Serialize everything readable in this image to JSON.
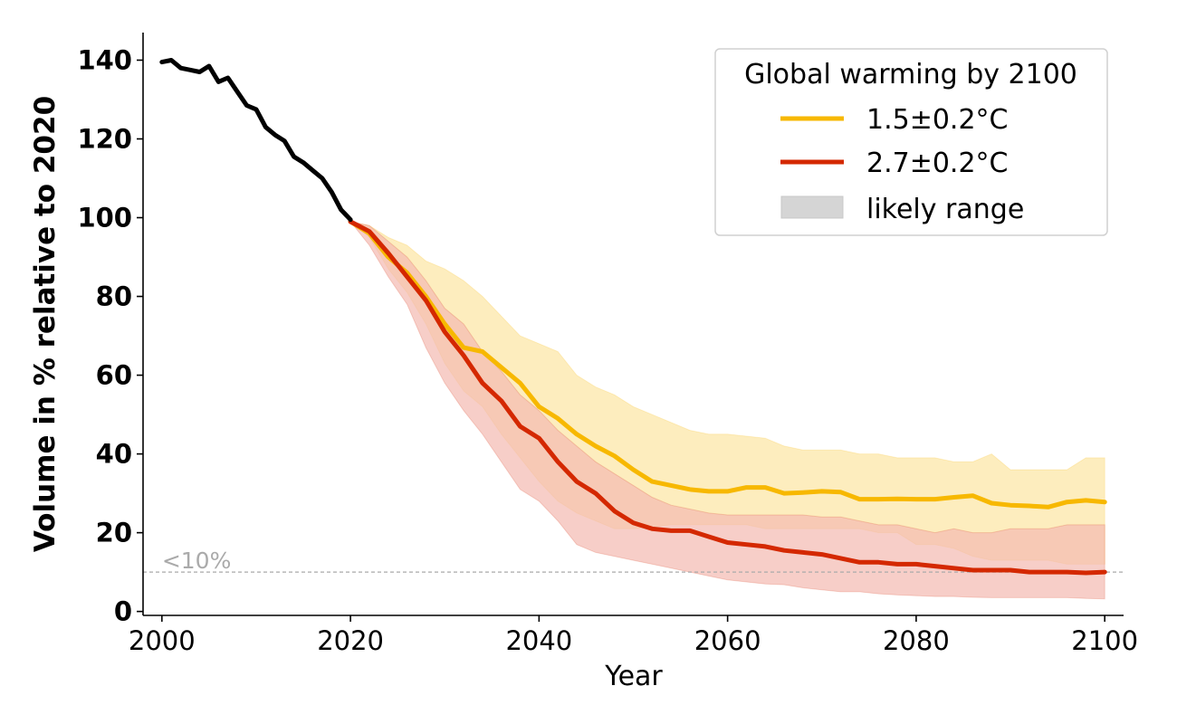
{
  "chart_data": {
    "type": "line",
    "title": "",
    "xlabel": "Year",
    "ylabel": "Volume in % relative to 2020",
    "xlim": [
      1998,
      2102
    ],
    "ylim": [
      -1,
      147
    ],
    "xticks": [
      2000,
      2020,
      2040,
      2060,
      2080,
      2100
    ],
    "xtick_labels": [
      "2000",
      "2020",
      "2040",
      "2060",
      "2080",
      "2100"
    ],
    "yticks": [
      0,
      20,
      40,
      60,
      80,
      100,
      120,
      140
    ],
    "ytick_labels": [
      "0",
      "20",
      "40",
      "60",
      "80",
      "100",
      "120",
      "140"
    ],
    "legend": {
      "title": "Global warming by 2100",
      "position": "top-right",
      "entries": [
        {
          "label": "1.5±0.2°C",
          "kind": "line",
          "color": "#f7b800"
        },
        {
          "label": "2.7±0.2°C",
          "kind": "line",
          "color": "#d42800"
        },
        {
          "label": "likely range",
          "kind": "patch",
          "color": "#d5d5d5"
        }
      ]
    },
    "threshold": {
      "label": "<10%",
      "value": 10,
      "color": "#aaaaaa"
    },
    "series": [
      {
        "name": "observed",
        "color": "#000000",
        "x": [
          2000,
          2001,
          2002,
          2003,
          2004,
          2005,
          2006,
          2007,
          2008,
          2009,
          2010,
          2011,
          2012,
          2013,
          2014,
          2015,
          2016,
          2017,
          2018,
          2019,
          2020
        ],
        "values": [
          139.5,
          140,
          138,
          137.5,
          137,
          138.5,
          134.5,
          135.5,
          132,
          128.5,
          127.5,
          123,
          121,
          119.5,
          115.5,
          114,
          112,
          110,
          106.5,
          102,
          99.5
        ]
      },
      {
        "name": "1.5±0.2°C",
        "color": "#f7b800",
        "band_color": "#fde9ae",
        "x": [
          2020,
          2022,
          2024,
          2026,
          2028,
          2030,
          2032,
          2034,
          2036,
          2038,
          2040,
          2042,
          2044,
          2046,
          2048,
          2050,
          2052,
          2054,
          2056,
          2058,
          2060,
          2062,
          2064,
          2066,
          2068,
          2070,
          2072,
          2074,
          2076,
          2078,
          2080,
          2082,
          2084,
          2086,
          2088,
          2090,
          2092,
          2094,
          2096,
          2098,
          2100
        ],
        "values": [
          99,
          96,
          90,
          86,
          80,
          73,
          67,
          66,
          62,
          58,
          52,
          49,
          45,
          42,
          39.5,
          36,
          33,
          32,
          31,
          30.5,
          30.5,
          31.5,
          31.5,
          30,
          30.2,
          30.5,
          30.3,
          28.5,
          28.5,
          28.6,
          28.5,
          28.5,
          29,
          29.4,
          27.5,
          27,
          26.8,
          26.5,
          27.8,
          28.2,
          27.8
        ],
        "upper": [
          99,
          98,
          95,
          93,
          89,
          87,
          84,
          80,
          75,
          70,
          68,
          66,
          60,
          57,
          55,
          52,
          50,
          48,
          46,
          45,
          45,
          44.5,
          44,
          42,
          41,
          41,
          41,
          40,
          40,
          39,
          39,
          39,
          38,
          38,
          40,
          36,
          36,
          36,
          36,
          39,
          39
        ],
        "lower": [
          99,
          95,
          87,
          81,
          73,
          63,
          56,
          52,
          45,
          39,
          33,
          28,
          25,
          23,
          21,
          21,
          21.5,
          22,
          22,
          22,
          22,
          22,
          21,
          21,
          21,
          21,
          21,
          21,
          20,
          20,
          17,
          17,
          16,
          14,
          13,
          13,
          13,
          13,
          12,
          12,
          12
        ]
      },
      {
        "name": "2.7±0.2°C",
        "color": "#d42800",
        "band_color": "#f3b9b1",
        "x": [
          2020,
          2022,
          2024,
          2026,
          2028,
          2030,
          2032,
          2034,
          2036,
          2038,
          2040,
          2042,
          2044,
          2046,
          2048,
          2050,
          2052,
          2054,
          2056,
          2058,
          2060,
          2062,
          2064,
          2066,
          2068,
          2070,
          2072,
          2074,
          2076,
          2078,
          2080,
          2082,
          2084,
          2086,
          2088,
          2090,
          2092,
          2094,
          2096,
          2098,
          2100
        ],
        "values": [
          99,
          96.5,
          91,
          85,
          79,
          71,
          65,
          58,
          53.5,
          47,
          44,
          38,
          33,
          30,
          25.5,
          22.5,
          21,
          20.5,
          20.5,
          19,
          17.5,
          17,
          16.5,
          15.5,
          15,
          14.5,
          13.5,
          12.5,
          12.5,
          12,
          12,
          11.5,
          11,
          10.5,
          10.5,
          10.5,
          10,
          10,
          10,
          9.8,
          10
        ],
        "upper": [
          99,
          98,
          94,
          90,
          84,
          77,
          73,
          66,
          61,
          55,
          51,
          46,
          42,
          38,
          35,
          32,
          29,
          27,
          26,
          25,
          24.5,
          24.5,
          24.5,
          24.5,
          24.5,
          24,
          24,
          23,
          22,
          22,
          21,
          20,
          21,
          20,
          20,
          21,
          21,
          21,
          22,
          22,
          22
        ],
        "lower": [
          99,
          93,
          85,
          78,
          67,
          58,
          51,
          45,
          38,
          31,
          28,
          23,
          17,
          15,
          14,
          13,
          12,
          11,
          10,
          9,
          8,
          7.5,
          7,
          6.8,
          6,
          5.5,
          5,
          5,
          4.5,
          4.2,
          4,
          3.8,
          3.8,
          3.6,
          3.5,
          3.5,
          3.5,
          3.5,
          3.5,
          3.3,
          3.2
        ]
      }
    ]
  }
}
